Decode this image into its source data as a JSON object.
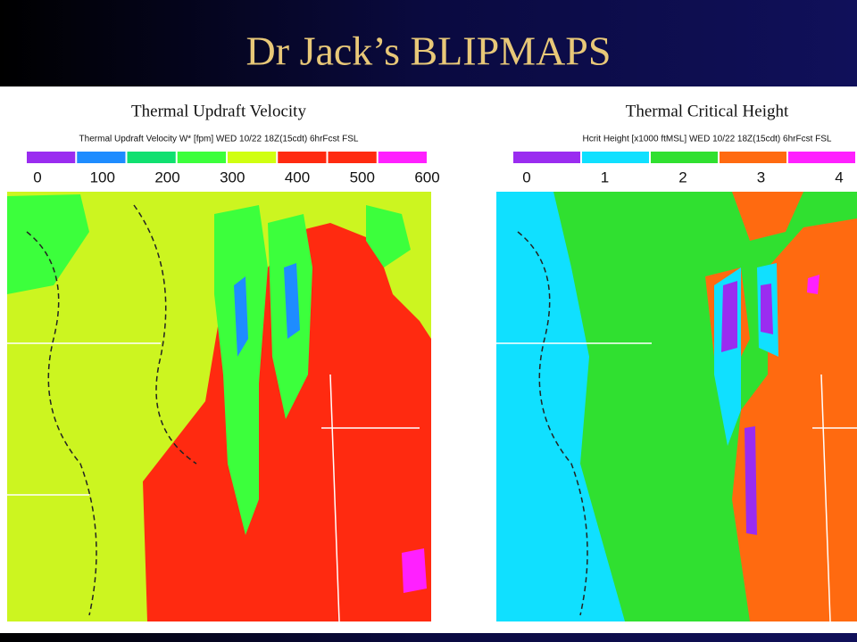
{
  "title": "Dr Jack’s BLIPMAPS",
  "panels": [
    {
      "title": "Thermal Updraft Velocity",
      "subtitle": "Thermal Updraft Velocity W* [fpm]  WED 10/22 18Z(15cdt) 6hrFcst FSL",
      "legend_labels": [
        "0",
        "100",
        "200",
        "300",
        "400",
        "500",
        "600"
      ],
      "legend_colors": [
        "#9a2cf0",
        "#1e8cff",
        "#10e070",
        "#3cff3c",
        "#d0ff10",
        "#ff2a10",
        "#ff2a10",
        "#ff20ff"
      ]
    },
    {
      "title": "Thermal Critical Height",
      "subtitle": "Hcrit Height [x1000 ftMSL]  WED 10/22 18Z(15cdt) 6hrFcst FSL",
      "legend_labels": [
        "0",
        "1",
        "2",
        "3",
        "4"
      ],
      "legend_colors": [
        "#9a2cf0",
        "#10e0ff",
        "#30e030",
        "#ff6a10",
        "#ff20ff"
      ]
    }
  ]
}
